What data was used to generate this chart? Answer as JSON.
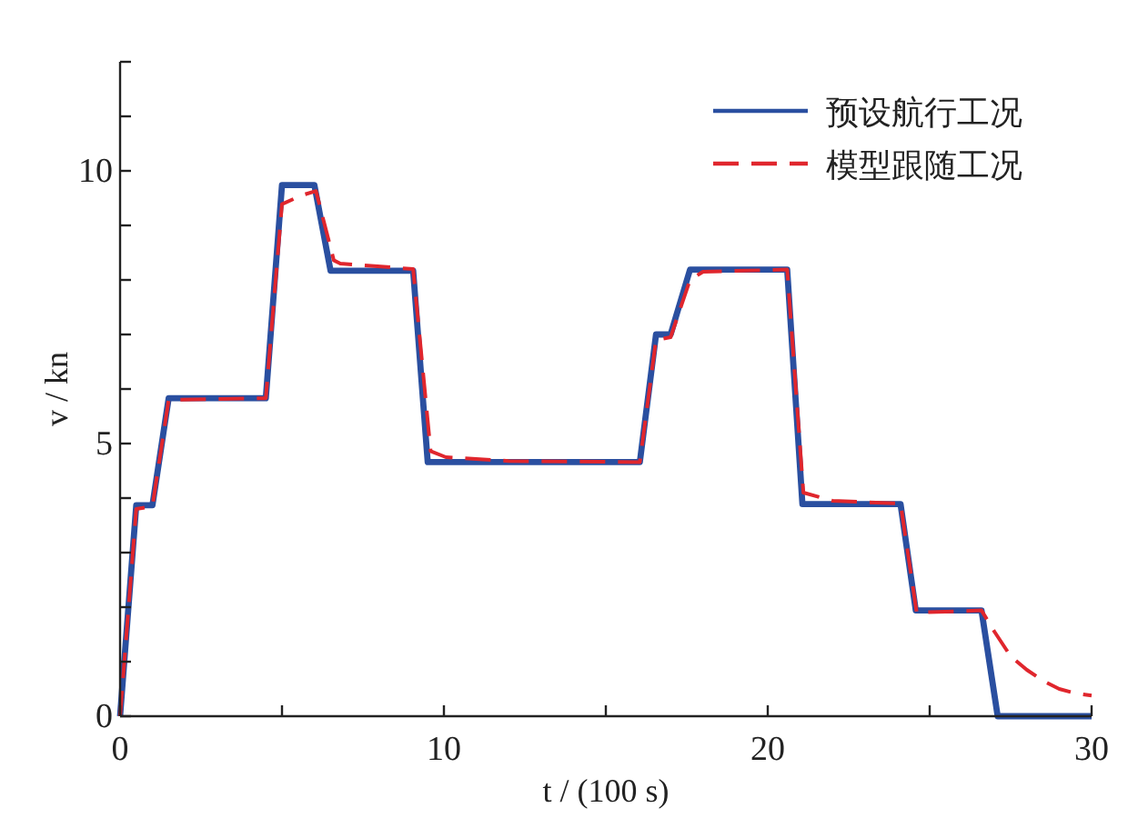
{
  "chart_data": {
    "type": "line",
    "xlabel": "t / (100 s)",
    "ylabel": "v / kn",
    "xlim": [
      0,
      30
    ],
    "ylim": [
      0,
      12
    ],
    "xticks": [
      0,
      {
        "value": 5,
        "label": null
      },
      10,
      {
        "value": 15,
        "label": null
      },
      20,
      {
        "value": 25,
        "label": null
      },
      30
    ],
    "yticks": [
      0,
      {
        "value": 1,
        "label": null
      },
      {
        "value": 2,
        "label": null
      },
      {
        "value": 3,
        "label": null
      },
      {
        "value": 4,
        "label": null
      },
      5,
      {
        "value": 6,
        "label": null
      },
      {
        "value": 7,
        "label": null
      },
      {
        "value": 8,
        "label": null
      },
      {
        "value": 9,
        "label": null
      },
      10,
      {
        "value": 11,
        "label": null
      },
      {
        "value": 12,
        "label": null
      }
    ],
    "legend": "top right",
    "grid": false,
    "series": [
      {
        "name": "预设航行工况",
        "color": "#2a4fa0",
        "line_style": "solid",
        "x": [
          0,
          0.5,
          1.0,
          1.5,
          4.5,
          5.0,
          6.0,
          6.5,
          9.05,
          9.5,
          16.05,
          16.55,
          17.0,
          17.6,
          20.6,
          21.07,
          24.1,
          24.57,
          26.6,
          27.1,
          30
        ],
        "values": [
          0,
          3.87,
          3.87,
          5.83,
          5.83,
          9.74,
          9.74,
          8.17,
          8.17,
          4.66,
          4.66,
          7.0,
          7.0,
          8.19,
          8.19,
          3.89,
          3.89,
          1.94,
          1.94,
          0,
          0
        ]
      },
      {
        "name": "模型跟随工况",
        "color": "#e0262d",
        "line_style": "dashed",
        "x": [
          0,
          0.5,
          1.0,
          1.5,
          4.5,
          5.0,
          5.6,
          6.05,
          6.6,
          6.8,
          9.05,
          9.59,
          10.06,
          12,
          16.05,
          16.55,
          17.0,
          17.6,
          18,
          20.6,
          21.1,
          22,
          24.1,
          24.6,
          26.6,
          27,
          27.5,
          28,
          28.5,
          29,
          29.5,
          30
        ],
        "values": [
          0,
          3.8,
          3.85,
          5.8,
          5.83,
          9.39,
          9.55,
          9.63,
          8.36,
          8.3,
          8.2,
          4.86,
          4.75,
          4.68,
          4.66,
          6.9,
          6.95,
          8.0,
          8.15,
          8.19,
          4.1,
          3.95,
          3.9,
          1.9,
          1.94,
          1.55,
          1.1,
          0.85,
          0.65,
          0.5,
          0.42,
          0.38
        ]
      }
    ]
  }
}
